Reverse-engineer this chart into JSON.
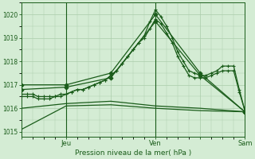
{
  "bg_color": "#d4ecd4",
  "grid_color": "#aaccaa",
  "line_color": "#1a5c1a",
  "xlabel": "Pression niveau de la mer( hPa )",
  "ylim": [
    1014.8,
    1020.5
  ],
  "yticks": [
    1015,
    1016,
    1017,
    1018,
    1019,
    1020
  ],
  "xlim": [
    0,
    120
  ],
  "xtick_labels": [
    "",
    "Jeu",
    "",
    "Ven",
    "",
    "Sam"
  ],
  "xtick_positions": [
    0,
    24,
    48,
    72,
    96,
    120
  ],
  "vlines": [
    24,
    72
  ],
  "series": [
    {
      "x": [
        0,
        3,
        6,
        9,
        12,
        15,
        18,
        21,
        24,
        27,
        30,
        33,
        36,
        39,
        42,
        45,
        48,
        51,
        54,
        57,
        60,
        63,
        66,
        69,
        72,
        75,
        78,
        81,
        84,
        87,
        90,
        93,
        96,
        99,
        102,
        105,
        108,
        111,
        114,
        117,
        120
      ],
      "y": [
        1016.6,
        1016.6,
        1016.6,
        1016.5,
        1016.5,
        1016.5,
        1016.5,
        1016.6,
        1016.6,
        1016.7,
        1016.8,
        1016.8,
        1016.9,
        1017.0,
        1017.1,
        1017.2,
        1017.4,
        1017.6,
        1017.9,
        1018.2,
        1018.5,
        1018.8,
        1019.1,
        1019.7,
        1020.2,
        1019.9,
        1019.5,
        1019.0,
        1018.4,
        1018.0,
        1017.6,
        1017.5,
        1017.4,
        1017.4,
        1017.5,
        1017.6,
        1017.8,
        1017.8,
        1017.8,
        1016.8,
        1015.9
      ],
      "marker": "+",
      "markersize": 3,
      "lw": 0.9
    },
    {
      "x": [
        0,
        3,
        6,
        9,
        12,
        15,
        18,
        21,
        24,
        27,
        30,
        33,
        36,
        39,
        42,
        45,
        48,
        51,
        54,
        57,
        60,
        63,
        66,
        69,
        72,
        75,
        78,
        81,
        84,
        87,
        90,
        93,
        96,
        99,
        102,
        105,
        108,
        111,
        114,
        117,
        120
      ],
      "y": [
        1016.5,
        1016.5,
        1016.5,
        1016.4,
        1016.4,
        1016.4,
        1016.5,
        1016.5,
        1016.6,
        1016.7,
        1016.8,
        1016.8,
        1016.9,
        1017.0,
        1017.1,
        1017.2,
        1017.4,
        1017.6,
        1017.9,
        1018.2,
        1018.5,
        1018.8,
        1019.0,
        1019.4,
        1019.8,
        1019.6,
        1019.2,
        1018.8,
        1018.2,
        1017.8,
        1017.4,
        1017.3,
        1017.3,
        1017.3,
        1017.4,
        1017.5,
        1017.6,
        1017.6,
        1017.6,
        1016.7,
        1015.9
      ],
      "marker": "+",
      "markersize": 3,
      "lw": 0.9
    },
    {
      "x": [
        0,
        24,
        48,
        72,
        96,
        120
      ],
      "y": [
        1017.0,
        1017.0,
        1017.5,
        1020.0,
        1017.5,
        1015.85
      ],
      "marker": "D",
      "markersize": 2.5,
      "lw": 0.9
    },
    {
      "x": [
        0,
        24,
        48,
        72,
        96,
        120
      ],
      "y": [
        1016.8,
        1016.9,
        1017.3,
        1019.7,
        1017.4,
        1015.85
      ],
      "marker": "D",
      "markersize": 2.5,
      "lw": 0.9
    },
    {
      "x": [
        0,
        24,
        48,
        72,
        96,
        120
      ],
      "y": [
        1016.0,
        1016.2,
        1016.3,
        1016.1,
        1016.0,
        1015.85
      ],
      "marker": null,
      "markersize": 0,
      "lw": 0.9
    },
    {
      "x": [
        0,
        24,
        48,
        72,
        96,
        120
      ],
      "y": [
        1015.1,
        1016.1,
        1016.15,
        1016.0,
        1015.9,
        1015.85
      ],
      "marker": null,
      "markersize": 0,
      "lw": 0.9
    }
  ]
}
